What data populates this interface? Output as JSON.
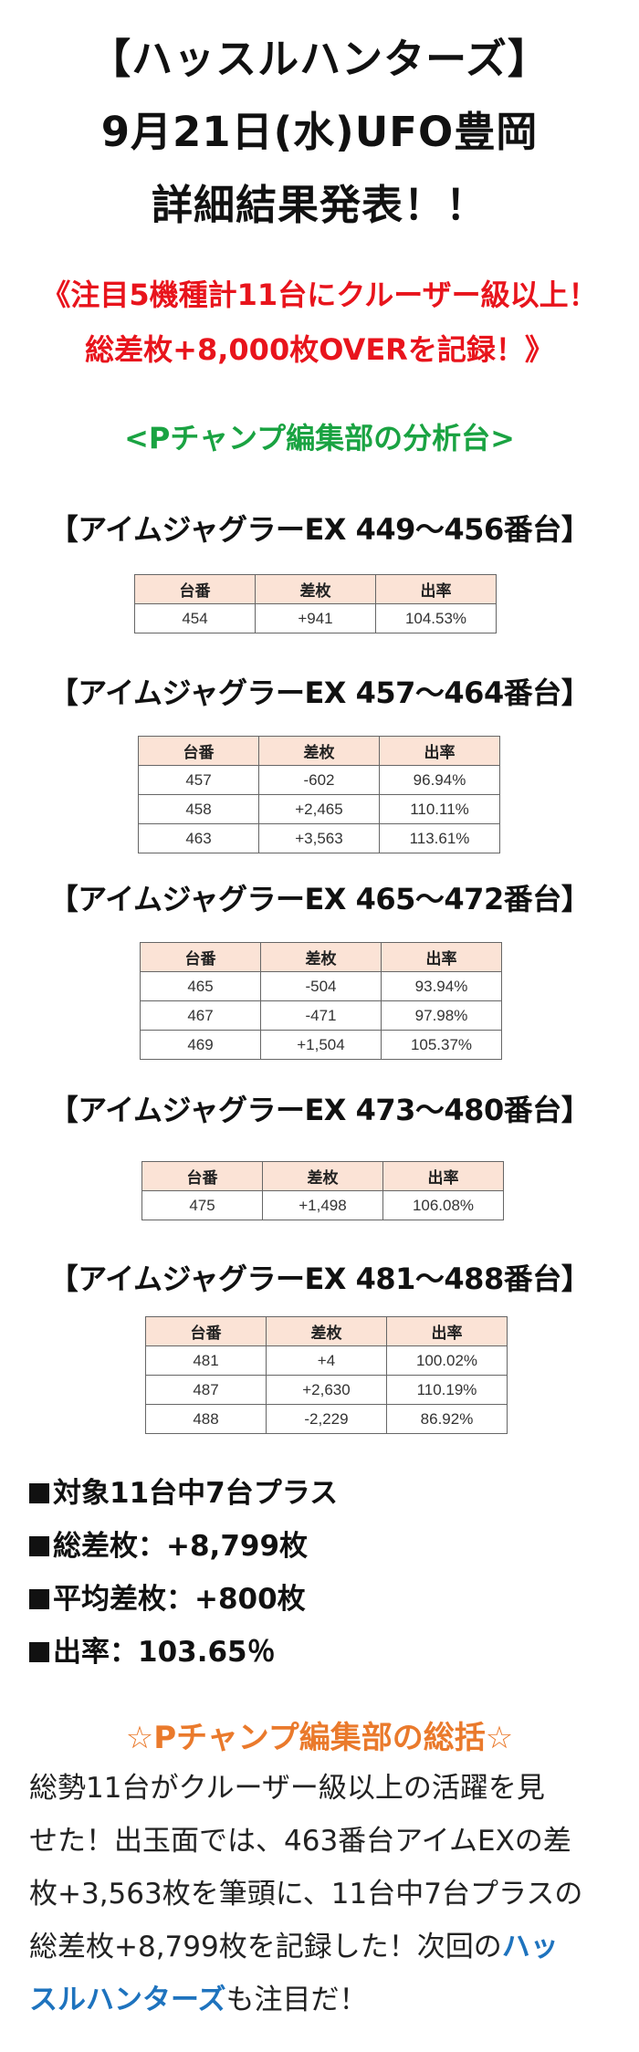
{
  "header": {
    "line1": "【ハッスルハンターズ】",
    "line2": "9月21日(水)UFO豊岡",
    "line3": "詳細結果発表！！"
  },
  "highlight": {
    "line1": "《注目5機種計11台にクルーザー級以上！",
    "line2": "総差枚+8,000枚OVERを記録！》"
  },
  "analysis_label": "<Pチャンプ編集部の分析台>",
  "table_headers": {
    "unit": "台番",
    "diff": "差枚",
    "rate": "出率"
  },
  "sections": [
    {
      "title": "【アイムジャグラーEX 449～456番台】",
      "rows": [
        [
          "454",
          "+941",
          "104.53%"
        ]
      ]
    },
    {
      "title": "【アイムジャグラーEX 457～464番台】",
      "rows": [
        [
          "457",
          "-602",
          "96.94%"
        ],
        [
          "458",
          "+2,465",
          "110.11%"
        ],
        [
          "463",
          "+3,563",
          "113.61%"
        ]
      ]
    },
    {
      "title": "【アイムジャグラーEX 465～472番台】",
      "rows": [
        [
          "465",
          "-504",
          "93.94%"
        ],
        [
          "467",
          "-471",
          "97.98%"
        ],
        [
          "469",
          "+1,504",
          "105.37%"
        ]
      ]
    },
    {
      "title": "【アイムジャグラーEX 473～480番台】",
      "rows": [
        [
          "475",
          "+1,498",
          "106.08%"
        ]
      ]
    },
    {
      "title": "【アイムジャグラーEX 481～488番台】",
      "rows": [
        [
          "481",
          "+4",
          "100.02%"
        ],
        [
          "487",
          "+2,630",
          "110.19%"
        ],
        [
          "488",
          "-2,229",
          "86.92%"
        ]
      ]
    }
  ],
  "summary": {
    "line1": "対象11台中7台プラス",
    "line2": "総差枚：+8,799枚",
    "line3": "平均差枚：+800枚",
    "line4": "出率：103.65％"
  },
  "closing_title": "☆Pチャンプ編集部の総括☆",
  "closing": {
    "l1": "総勢11台がクルーザー級以上の活躍を見",
    "l2": "せた！出玉面では、463番台アイムEXの差",
    "l3": "枚+3,563枚を筆頭に、11台中7台プラスの",
    "l4a": "総差枚+8,799枚を記録した！次回の",
    "l4b": "ハッ",
    "l5a": "スルハンターズ",
    "l5b": "も注目だ！"
  }
}
